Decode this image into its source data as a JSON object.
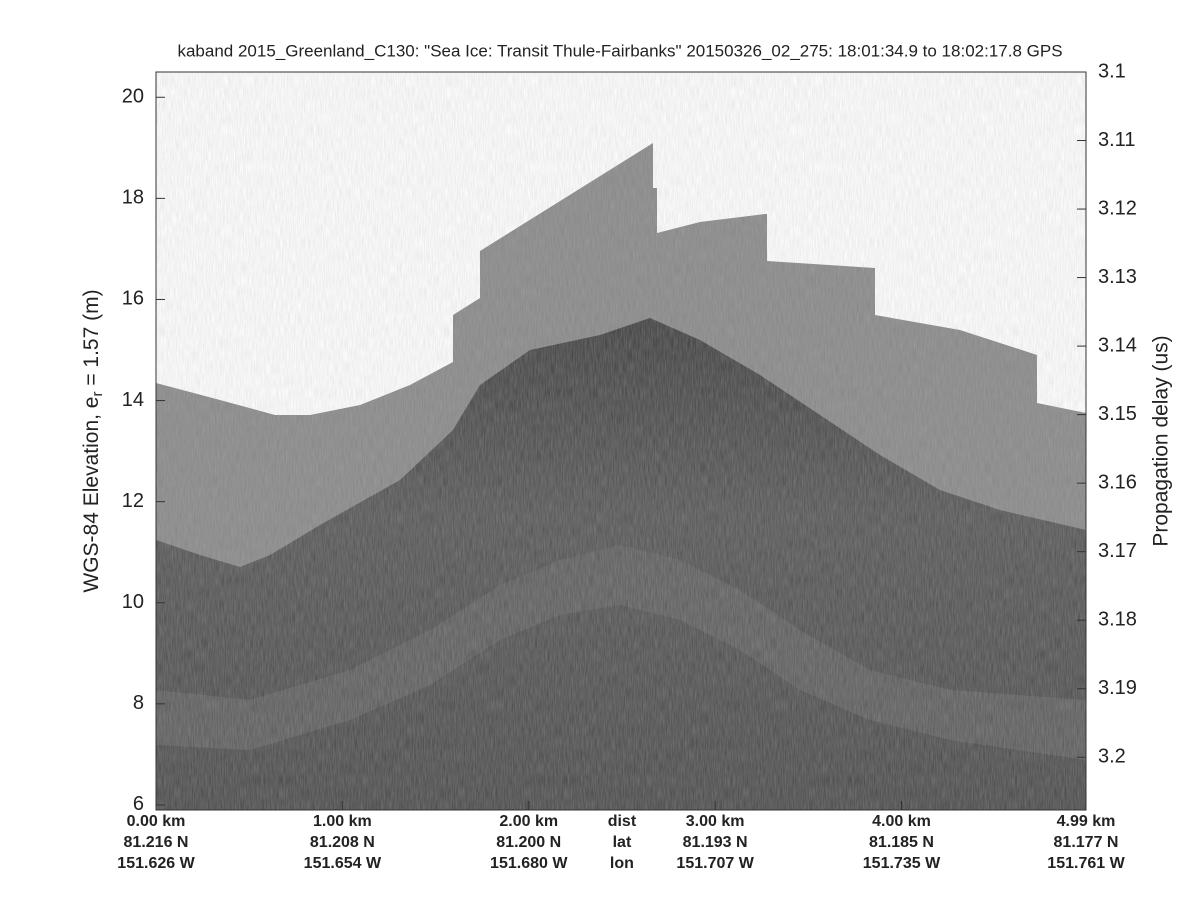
{
  "chart_data": {
    "type": "echogram",
    "title": "kaband 2015_Greenland_C130: \"Sea Ice: Transit Thule-Fairbanks\"  20150326_02_275: 18:01:34.9 to 18:02:17.8 GPS",
    "ylabel": "WGS-84 Elevation, e",
    "ylabel_sub": "r",
    "ylabel_rest": " = 1.57 (m)",
    "y2label": "Propagation delay (us)",
    "ylim": [
      5.9,
      20.5
    ],
    "yticks": [
      6,
      8,
      10,
      12,
      14,
      16,
      18,
      20
    ],
    "y2lim": [
      3.2077,
      3.1
    ],
    "y2ticks": [
      3.1,
      3.11,
      3.12,
      3.13,
      3.14,
      3.15,
      3.16,
      3.17,
      3.18,
      3.19,
      3.2
    ],
    "xlim": [
      0,
      4.99
    ],
    "xticks": [
      {
        "value": 0,
        "label": "0.00 km"
      },
      {
        "value": 1,
        "label": "1.00 km"
      },
      {
        "value": 2,
        "label": "2.00 km"
      },
      {
        "value": 3,
        "label": "3.00 km"
      },
      {
        "value": 4,
        "label": "4.00 km"
      },
      {
        "value": 4.99,
        "label": "4.99 km"
      }
    ],
    "lat_labels": [
      "81.216 N",
      "81.208 N",
      "81.200 N",
      "81.193 N",
      "81.185 N",
      "81.177 N"
    ],
    "lon_labels": [
      "151.626 W",
      "151.654 W",
      "151.680 W",
      "151.707 W",
      "151.735 W",
      "151.761 W"
    ],
    "row_labels": [
      "dist",
      "lat",
      "lon"
    ]
  }
}
